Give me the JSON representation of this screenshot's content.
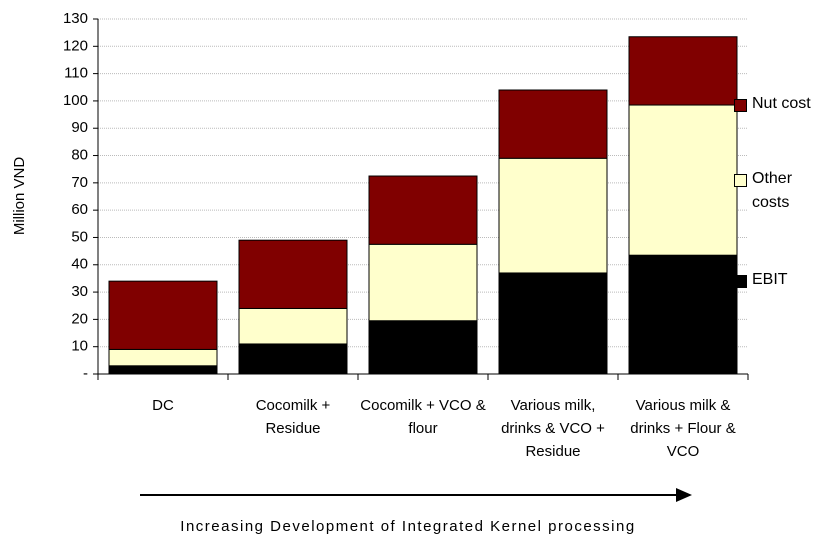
{
  "chart_data": {
    "type": "stacked_bar",
    "categories": [
      "DC",
      "Cocomilk + Residue",
      "Cocomilk + VCO & flour",
      "Various milk, drinks & VCO + Residue",
      "Various milk & drinks + Flour & VCO"
    ],
    "series": [
      {
        "name": "EBIT",
        "color": "#000000",
        "values": [
          3,
          11,
          19.5,
          37,
          43.5
        ]
      },
      {
        "name": "Other costs",
        "color": "#ffffcc",
        "values": [
          6,
          13,
          28,
          42,
          55
        ]
      },
      {
        "name": "Nut cost",
        "color": "#800000",
        "values": [
          25,
          25,
          25,
          25,
          25
        ]
      }
    ],
    "y_label": "Million VND",
    "x_label": "Increasing Development of Integrated Kernel processing",
    "ylim": [
      0,
      130
    ],
    "yticks": [
      {
        "value": 0,
        "label": "-"
      },
      10,
      20,
      30,
      40,
      50,
      60,
      70,
      80,
      90,
      100,
      110,
      120,
      130
    ],
    "grid": true
  }
}
